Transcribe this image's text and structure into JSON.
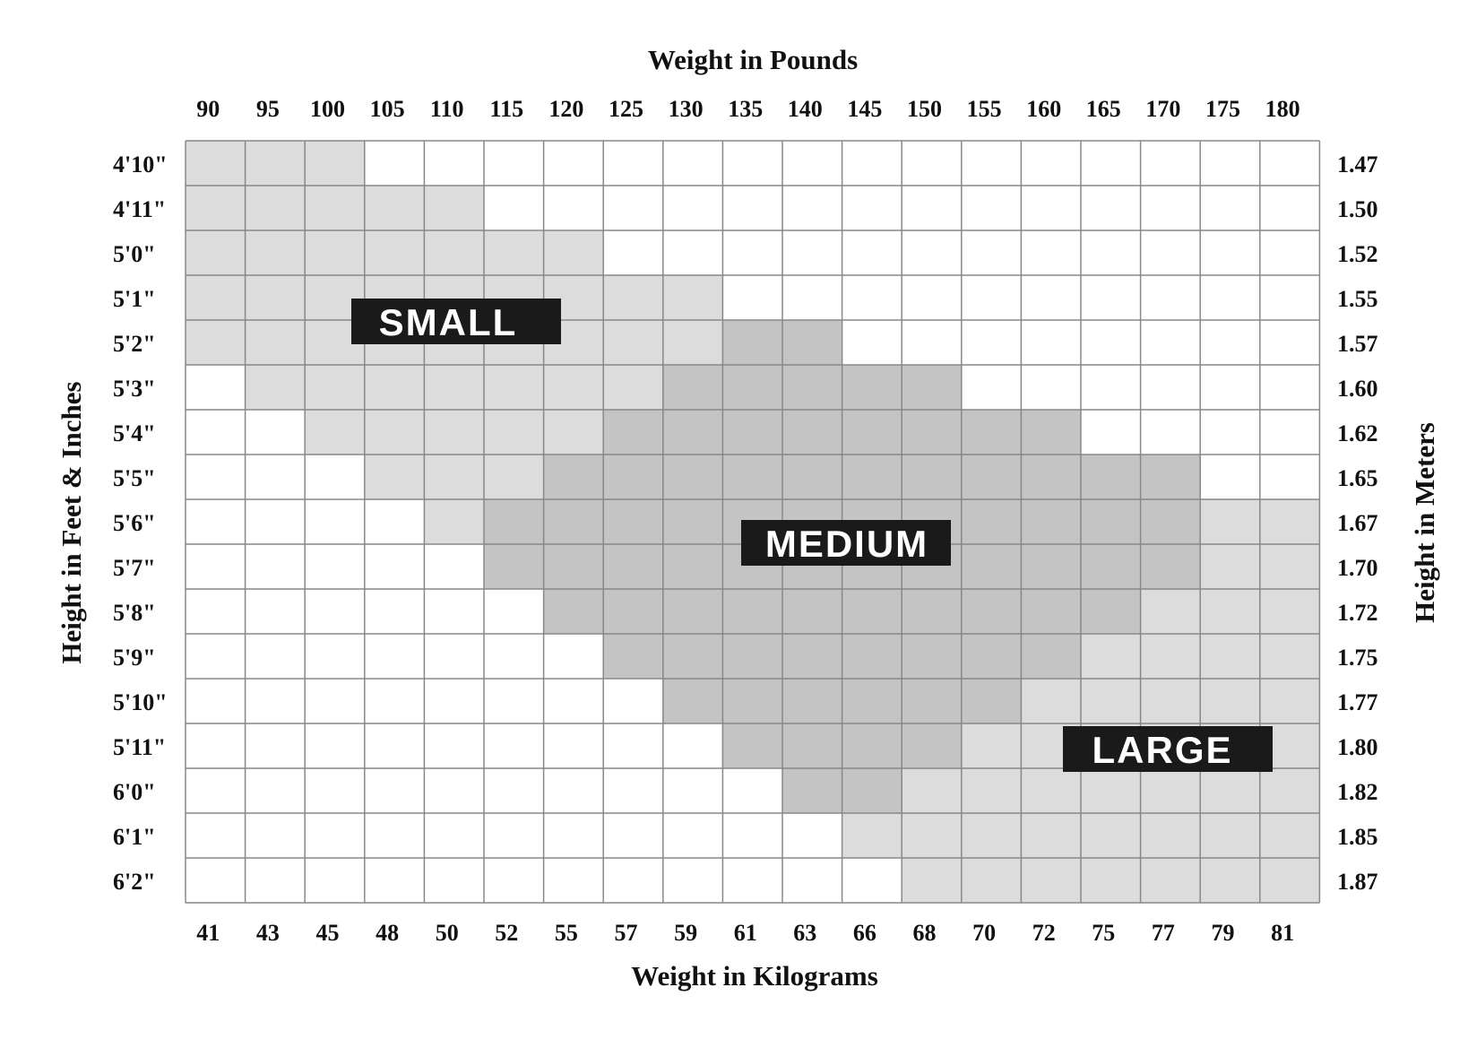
{
  "chart_data": {
    "type": "heatmap",
    "title": "Weight in Pounds",
    "xlabel_top": "Weight in Pounds",
    "xlabel_bottom": "Weight in Kilograms",
    "ylabel_left": "Height in Feet & Inches",
    "ylabel_right": "Height in Meters",
    "x_pounds": [
      "90",
      "95",
      "100",
      "105",
      "110",
      "115",
      "120",
      "125",
      "130",
      "135",
      "140",
      "145",
      "150",
      "155",
      "160",
      "165",
      "170",
      "175",
      "180"
    ],
    "x_kilograms": [
      "41",
      "43",
      "45",
      "48",
      "50",
      "52",
      "55",
      "57",
      "59",
      "61",
      "63",
      "66",
      "68",
      "70",
      "72",
      "75",
      "77",
      "79",
      "81"
    ],
    "y_feet_inches": [
      "4'10\"",
      "4'11\"",
      "5'0\"",
      "5'1\"",
      "5'2\"",
      "5'3\"",
      "5'4\"",
      "5'5\"",
      "5'6\"",
      "5'7\"",
      "5'8\"",
      "5'9\"",
      "5'10\"",
      "5'11\"",
      "6'0\"",
      "6'1\"",
      "6'2\""
    ],
    "y_meters": [
      "1.47",
      "1.50",
      "1.52",
      "1.55",
      "1.57",
      "1.60",
      "1.62",
      "1.65",
      "1.67",
      "1.70",
      "1.72",
      "1.75",
      "1.77",
      "1.80",
      "1.82",
      "1.85",
      "1.87"
    ],
    "regions": [
      {
        "name": "SMALL",
        "color": "#dcdcdc"
      },
      {
        "name": "MEDIUM",
        "color": "#c4c4c4"
      },
      {
        "name": "LARGE",
        "color": "#dcdcdc"
      }
    ],
    "grid": [
      "SSS................",
      "SSSSS..............",
      "SSSSSSS............",
      "SSSSSSSSS..........",
      "SSSSSSSSSMM........",
      ".SSSSSSSMMMMM......",
      "..SSSSSMMMMMMMM....",
      "...SSSMMMMMMMMMMM..",
      "....SMMMMMMMMMMMMLL",
      ".....MMMMMMMMMMMMLL",
      "......MMMMMMMMMMLLL",
      ".......MMMMMMMMLLLL",
      "........MMMMMMLLLLL",
      ".........MMMMLLLLLL",
      "..........MMLLLLLLL",
      "...........LLLLLLLL",
      "............LLLLLLL"
    ],
    "grid_legend": {
      "S": "SMALL",
      "M": "MEDIUM",
      "L": "LARGE",
      ".": "none"
    },
    "empty_color": "#ffffff",
    "grid_line_color": "#888888",
    "label_box_color": "#1a1a1a"
  }
}
